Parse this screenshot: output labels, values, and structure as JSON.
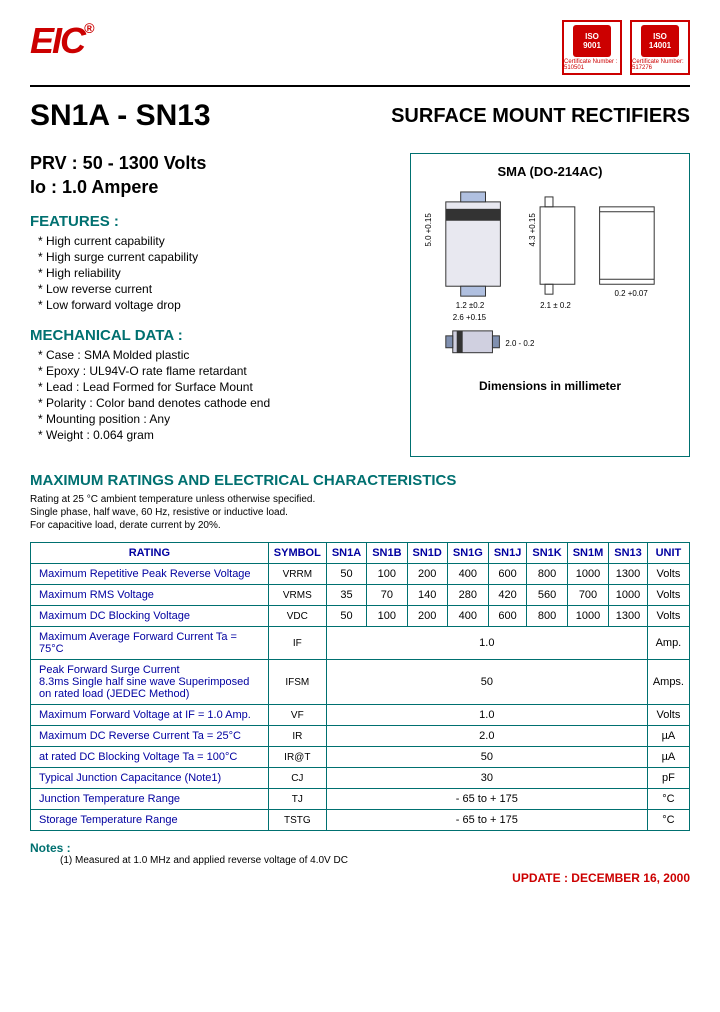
{
  "logo": "EIC",
  "certs": [
    {
      "label1": "ISO",
      "label2": "9001",
      "sub": "Certificate Number : 510501"
    },
    {
      "label1": "ISO",
      "label2": "14001",
      "sub": "Certificate Number: 517276"
    }
  ],
  "part_number": "SN1A - SN13",
  "doc_title": "SURFACE MOUNT RECTIFIERS",
  "prv": "PRV : 50 - 1300 Volts",
  "io": "Io : 1.0 Ampere",
  "features_head": "FEATURES :",
  "features": [
    "*  High current capability",
    "*  High surge current capability",
    "*  High reliability",
    "*  Low reverse current",
    "*  Low forward voltage drop"
  ],
  "mech_head": "MECHANICAL  DATA :",
  "mech": [
    "*  Case :  SMA Molded plastic",
    "*  Epoxy : UL94V-O rate flame retardant",
    "*  Lead : Lead Formed for Surface Mount",
    "*  Polarity : Color band denotes cathode end",
    "*  Mounting  position : Any",
    "*  Weight : 0.064 gram"
  ],
  "diagram_title": "SMA (DO-214AC)",
  "diagram_caption": "Dimensions in millimeter",
  "ratings_head": "MAXIMUM RATINGS AND ELECTRICAL CHARACTERISTICS",
  "ratings_desc": [
    "Rating at 25 °C ambient temperature unless otherwise specified.",
    "Single phase, half wave, 60 Hz, resistive or inductive load.",
    "For capacitive load, derate current by 20%."
  ],
  "table": {
    "headers": [
      "RATING",
      "SYMBOL",
      "SN1A",
      "SN1B",
      "SN1D",
      "SN1G",
      "SN1J",
      "SN1K",
      "SN1M",
      "SN13",
      "UNIT"
    ],
    "rows": [
      {
        "rating": "Maximum Repetitive Peak Reverse Voltage",
        "symbol": "VRRM",
        "vals": [
          "50",
          "100",
          "200",
          "400",
          "600",
          "800",
          "1000",
          "1300"
        ],
        "unit": "Volts"
      },
      {
        "rating": "Maximum RMS Voltage",
        "symbol": "VRMS",
        "vals": [
          "35",
          "70",
          "140",
          "280",
          "420",
          "560",
          "700",
          "1000"
        ],
        "unit": "Volts"
      },
      {
        "rating": "Maximum DC Blocking Voltage",
        "symbol": "VDC",
        "vals": [
          "50",
          "100",
          "200",
          "400",
          "600",
          "800",
          "1000",
          "1300"
        ],
        "unit": "Volts"
      },
      {
        "rating": "Maximum Average Forward Current   Ta = 75°C",
        "symbol": "IF",
        "span": "1.0",
        "unit": "Amp."
      },
      {
        "rating": "Peak Forward Surge Current\n8.3ms Single half sine wave Superimposed\non rated load  (JEDEC Method)",
        "symbol": "IFSM",
        "span": "50",
        "unit": "Amps."
      },
      {
        "rating": "Maximum Forward Voltage at IF = 1.0 Amp.",
        "symbol": "VF",
        "span": "1.0",
        "unit": "Volts"
      },
      {
        "rating": "Maximum DC Reverse Current      Ta = 25°C",
        "symbol": "IR",
        "span": "2.0",
        "unit": "µA"
      },
      {
        "rating": "at rated DC Blocking Voltage         Ta = 100°C",
        "symbol": "IR@T",
        "span": "50",
        "unit": "µA"
      },
      {
        "rating": "Typical Junction Capacitance (Note1)",
        "symbol": "CJ",
        "span": "30",
        "unit": "pF"
      },
      {
        "rating": "Junction Temperature Range",
        "symbol": "TJ",
        "span": "- 65 to + 175",
        "unit": "°C"
      },
      {
        "rating": "Storage Temperature Range",
        "symbol": "TSTG",
        "span": "- 65 to + 175",
        "unit": "°C"
      }
    ]
  },
  "notes_head": "Notes :",
  "notes_body": "(1) Measured at 1.0 MHz and applied  reverse voltage of 4.0V DC",
  "update": "UPDATE : DECEMBER 16, 2000"
}
